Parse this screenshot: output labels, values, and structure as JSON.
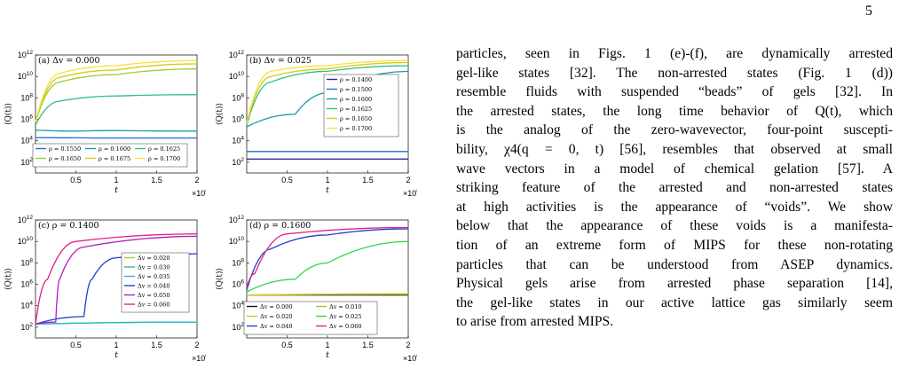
{
  "page": {
    "number": "5"
  },
  "figure": {
    "ylabel": "⟨Q(t)⟩",
    "xlabel": "t",
    "x_multiplier": "×10^6",
    "x_multiplier_base": "×10",
    "x_multiplier_exp": "6",
    "x_tick_labels": [
      "0.5",
      "1",
      "1.5",
      "2"
    ],
    "y_tick_labels": [
      {
        "base": "10",
        "exp": "2"
      },
      {
        "base": "10",
        "exp": "4"
      },
      {
        "base": "10",
        "exp": "6"
      },
      {
        "base": "10",
        "exp": "8"
      },
      {
        "base": "10",
        "exp": "10"
      },
      {
        "base": "10",
        "exp": "12"
      }
    ]
  },
  "chart_data": [
    {
      "type": "line",
      "title": "(a) Δv = 0.000",
      "xlabel": "t",
      "ylabel": "⟨Q(t)⟩",
      "xlim": [
        0,
        2000000
      ],
      "ylim": [
        10,
        1000000000000
      ],
      "yscale": "log",
      "legend_position": "bottom",
      "series": [
        {
          "name": "ρ = 0.1550",
          "color": "#1f6fd0",
          "points": [
            [
              0,
              20000
            ],
            [
              500000,
              19000
            ],
            [
              1000000,
              18000
            ],
            [
              2000000,
              18000
            ]
          ]
        },
        {
          "name": "ρ = 0.1600",
          "color": "#1a9aa8",
          "points": [
            [
              0,
              100000
            ],
            [
              500000,
              80000
            ],
            [
              1000000,
              90000
            ],
            [
              2000000,
              80000
            ]
          ]
        },
        {
          "name": "ρ = 0.1625",
          "color": "#2ec27e",
          "points": [
            [
              0,
              300000
            ],
            [
              300000,
              50000000
            ],
            [
              1000000,
              150000000
            ],
            [
              2000000,
              200000000
            ]
          ]
        },
        {
          "name": "ρ = 0.1650",
          "color": "#9acd32",
          "points": [
            [
              0,
              500000
            ],
            [
              300000,
              3000000000
            ],
            [
              1000000,
              15000000000
            ],
            [
              2000000,
              50000000000
            ]
          ]
        },
        {
          "name": "ρ = 0.1675",
          "color": "#d8c81a",
          "points": [
            [
              0,
              500000
            ],
            [
              300000,
              8000000000
            ],
            [
              1000000,
              40000000000
            ],
            [
              2000000,
              150000000000
            ]
          ]
        },
        {
          "name": "ρ = 0.1700",
          "color": "#f5e23b",
          "points": [
            [
              0,
              600000
            ],
            [
              300000,
              20000000000
            ],
            [
              1000000,
              100000000000
            ],
            [
              2000000,
              300000000000
            ]
          ]
        }
      ]
    },
    {
      "type": "line",
      "title": "(b) Δv = 0.025",
      "xlabel": "t",
      "ylabel": "⟨Q(t)⟩",
      "xlim": [
        0,
        2000000
      ],
      "ylim": [
        10,
        1000000000000
      ],
      "yscale": "log",
      "legend_position": "right",
      "series": [
        {
          "name": "ρ = 0.1400",
          "color": "#2a2aa0",
          "points": [
            [
              0,
              200
            ],
            [
              2000000,
              200
            ]
          ]
        },
        {
          "name": "ρ = 0.1500",
          "color": "#1f6fd0",
          "points": [
            [
              0,
              1000
            ],
            [
              2000000,
              1000
            ]
          ]
        },
        {
          "name": "ρ = 0.1600",
          "color": "#1a9aa8",
          "points": [
            [
              0,
              200000
            ],
            [
              600000,
              3000000
            ],
            [
              1000000,
              300000000
            ],
            [
              2000000,
              30000000000
            ]
          ]
        },
        {
          "name": "ρ = 0.1625",
          "color": "#2ec27e",
          "points": [
            [
              0,
              300000
            ],
            [
              300000,
              3000000000
            ],
            [
              1000000,
              30000000000
            ],
            [
              2000000,
              100000000000
            ]
          ]
        },
        {
          "name": "ρ = 0.1650",
          "color": "#d8c81a",
          "points": [
            [
              0,
              400000
            ],
            [
              300000,
              10000000000
            ],
            [
              1000000,
              50000000000
            ],
            [
              2000000,
              200000000000
            ]
          ]
        },
        {
          "name": "ρ = 0.1700",
          "color": "#f5e23b",
          "points": [
            [
              0,
              500000
            ],
            [
              300000,
              30000000000
            ],
            [
              1000000,
              100000000000
            ],
            [
              2000000,
              300000000000
            ]
          ]
        }
      ]
    },
    {
      "type": "line",
      "title": "(c) ρ = 0.1400",
      "xlabel": "t",
      "ylabel": "⟨Q(t)⟩",
      "xlim": [
        0,
        2000000
      ],
      "ylim": [
        10,
        1000000000000
      ],
      "yscale": "log",
      "legend_position": "right",
      "series": [
        {
          "name": "Δv = 0.020",
          "color": "#9acd32",
          "points": [
            [
              0,
              200
            ],
            [
              2000000,
              300
            ]
          ]
        },
        {
          "name": "Δv = 0.030",
          "color": "#2ec27e",
          "points": [
            [
              0,
              200
            ],
            [
              2000000,
              300
            ]
          ]
        },
        {
          "name": "Δv = 0.035",
          "color": "#29b6d8",
          "points": [
            [
              0,
              200
            ],
            [
              2000000,
              300
            ]
          ]
        },
        {
          "name": "Δv = 0.040",
          "color": "#1f3fd0",
          "points": [
            [
              0,
              200
            ],
            [
              600000,
              1000
            ],
            [
              700000,
              3000000
            ],
            [
              1000000,
              300000000
            ],
            [
              2000000,
              700000000
            ]
          ]
        },
        {
          "name": "Δv = 0.050",
          "color": "#b01fc0",
          "points": [
            [
              0,
              200
            ],
            [
              250000,
              300
            ],
            [
              300000,
              3000000
            ],
            [
              600000,
              3000000000
            ],
            [
              2000000,
              30000000000
            ]
          ]
        },
        {
          "name": "Δv = 0.060",
          "color": "#e0218a",
          "points": [
            [
              0,
              200
            ],
            [
              150000,
              3000000
            ],
            [
              500000,
              10000000000
            ],
            [
              2000000,
              50000000000
            ]
          ]
        }
      ]
    },
    {
      "type": "line",
      "title": "(d) ρ = 0.1600",
      "xlabel": "t",
      "ylabel": "⟨Q(t)⟩",
      "xlim": [
        0,
        2000000
      ],
      "ylim": [
        10,
        1000000000000
      ],
      "yscale": "log",
      "legend_position": "bottom",
      "series": [
        {
          "name": "Δv = 0.000",
          "color": "#111111",
          "points": [
            [
              0,
              100000
            ],
            [
              2000000,
              100000
            ]
          ]
        },
        {
          "name": "Δv = 0.010",
          "color": "#9acd32",
          "points": [
            [
              0,
              100000
            ],
            [
              2000000,
              120000
            ]
          ]
        },
        {
          "name": "Δv = 0.020",
          "color": "#d8c81a",
          "points": [
            [
              0,
              100000
            ],
            [
              2000000,
              130000
            ]
          ]
        },
        {
          "name": "Δv = 0.025",
          "color": "#2ed84a",
          "points": [
            [
              0,
              200000
            ],
            [
              600000,
              3000000
            ],
            [
              1000000,
              100000000
            ],
            [
              2000000,
              10000000000
            ]
          ]
        },
        {
          "name": "Δv = 0.040",
          "color": "#1f3fd0",
          "points": [
            [
              0,
              300000
            ],
            [
              300000,
              2000000000
            ],
            [
              1000000,
              40000000000
            ],
            [
              2000000,
              150000000000
            ]
          ]
        },
        {
          "name": "Δv = 0.060",
          "color": "#e0218a",
          "points": [
            [
              0,
              500000
            ],
            [
              100000,
              10000000
            ],
            [
              500000,
              50000000000
            ],
            [
              2000000,
              200000000000
            ]
          ]
        }
      ]
    }
  ],
  "body_text": {
    "lines": [
      "particles, seen in Figs. 1 (e)-(f), are dynamically arrested",
      "gel-like states [32].  The non-arrested states (Fig. 1 (d))",
      "resemble fluids with suspended “beads” of gels [32].  In",
      "the arrested states, the long time behavior of Q(t), which",
      "is the analog of the zero-wavevector, four-point suscepti-",
      "bility, χ4(q = 0, t) [56], resembles that observed at small",
      "wave vectors in a model of chemical gelation [57].  A",
      "striking feature of the arrested and non-arrested states",
      "at high activities is the appearance of “voids”. We show",
      "below that the appearance of these voids is a manifesta-",
      "tion of an extreme form of MIPS for these non-rotating",
      "particles that can be understood from ASEP dynamics.",
      "Physical gels arise from arrested phase separation [14],",
      "the gel-like states in our active lattice gas similarly seem",
      "to arise from arrested MIPS."
    ]
  }
}
